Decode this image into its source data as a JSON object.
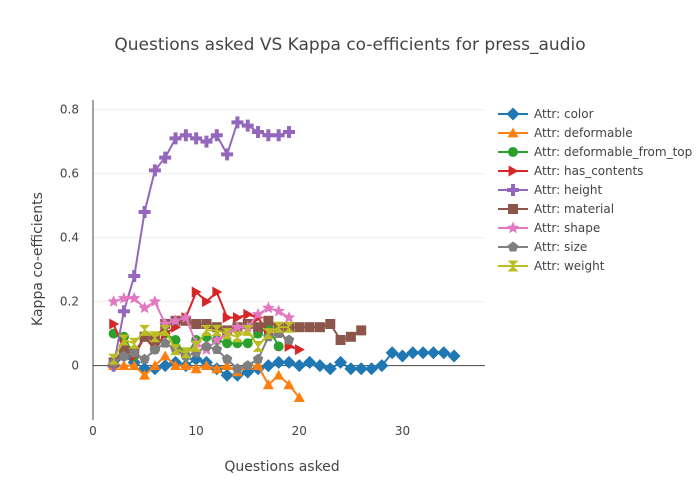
{
  "chart_data": {
    "type": "line",
    "title": "Questions asked VS Kappa co-efficients for press_audio",
    "xlabel": "Questions asked",
    "ylabel": "Kappa co-efficients",
    "xlim": [
      0,
      38
    ],
    "ylim": [
      -0.17,
      0.83
    ],
    "xticks": [
      0,
      10,
      20,
      30
    ],
    "yticks": [
      0,
      0.2,
      0.4,
      0.6,
      0.8
    ],
    "grid": "horizontal",
    "legend_position": "right",
    "series": [
      {
        "name": "Attr: color",
        "color": "#1f77b4",
        "marker": "diamond",
        "x": [
          2,
          3,
          4,
          5,
          6,
          7,
          8,
          9,
          10,
          11,
          12,
          13,
          14,
          15,
          16,
          17,
          18,
          19,
          20,
          21,
          22,
          23,
          24,
          25,
          26,
          27,
          28,
          29,
          30,
          31,
          32,
          33,
          34,
          35
        ],
        "y": [
          0.0,
          0.03,
          0.01,
          -0.01,
          -0.01,
          0.0,
          0.01,
          0.0,
          0.02,
          0.01,
          -0.01,
          -0.03,
          -0.03,
          -0.02,
          -0.01,
          0.0,
          0.01,
          0.01,
          0.0,
          0.01,
          0.0,
          -0.01,
          0.01,
          -0.01,
          -0.01,
          -0.01,
          0.0,
          0.04,
          0.03,
          0.04,
          0.04,
          0.04,
          0.04,
          0.03
        ]
      },
      {
        "name": "Attr: deformable",
        "color": "#ff7f0e",
        "marker": "triangle-up",
        "x": [
          2,
          3,
          4,
          5,
          6,
          7,
          8,
          9,
          10,
          11,
          12,
          13,
          14,
          15,
          16,
          17,
          18,
          19,
          20
        ],
        "y": [
          0.0,
          0.0,
          0.0,
          -0.03,
          0.0,
          0.03,
          0.0,
          0.0,
          -0.01,
          0.0,
          -0.01,
          0.0,
          -0.02,
          0.0,
          0.0,
          -0.06,
          -0.03,
          -0.06,
          -0.1
        ]
      },
      {
        "name": "Attr: deformable_from_top",
        "color": "#2ca02c",
        "marker": "circle",
        "x": [
          2,
          3,
          4,
          5,
          6,
          7,
          8,
          9,
          10,
          11,
          12,
          13,
          14,
          15,
          16,
          17,
          18
        ],
        "y": [
          0.1,
          0.09,
          0.03,
          0.09,
          0.05,
          0.1,
          0.08,
          0.03,
          0.08,
          0.09,
          0.08,
          0.07,
          0.07,
          0.07,
          0.1,
          0.12,
          0.06
        ]
      },
      {
        "name": "Attr: has_contents",
        "color": "#d62728",
        "marker": "triangle-right",
        "x": [
          2,
          3,
          4,
          5,
          6,
          7,
          8,
          9,
          10,
          11,
          12,
          13,
          14,
          15,
          16,
          17,
          18,
          19,
          20
        ],
        "y": [
          0.13,
          0.05,
          0.03,
          0.09,
          0.05,
          0.1,
          0.12,
          0.15,
          0.23,
          0.2,
          0.23,
          0.15,
          0.15,
          0.16,
          0.15,
          0.1,
          0.12,
          0.06,
          0.05
        ]
      },
      {
        "name": "Attr: height",
        "color": "#9467bd",
        "marker": "cross",
        "x": [
          2,
          3,
          4,
          5,
          6,
          7,
          8,
          9,
          10,
          11,
          12,
          13,
          14,
          15,
          16,
          17,
          18,
          19
        ],
        "y": [
          0.0,
          0.17,
          0.28,
          0.48,
          0.61,
          0.65,
          0.71,
          0.72,
          0.71,
          0.7,
          0.72,
          0.66,
          0.76,
          0.75,
          0.73,
          0.72,
          0.72,
          0.73
        ]
      },
      {
        "name": "Attr: material",
        "color": "#8c564b",
        "marker": "square",
        "x": [
          2,
          3,
          4,
          5,
          6,
          7,
          8,
          9,
          10,
          11,
          12,
          13,
          14,
          15,
          16,
          17,
          18,
          19,
          20,
          21,
          22,
          23,
          24,
          25,
          26
        ],
        "y": [
          0.01,
          0.05,
          0.04,
          0.09,
          0.08,
          0.13,
          0.14,
          0.14,
          0.13,
          0.13,
          0.12,
          0.11,
          0.12,
          0.13,
          0.12,
          0.14,
          0.12,
          0.12,
          0.12,
          0.12,
          0.12,
          0.13,
          0.08,
          0.09,
          0.11
        ]
      },
      {
        "name": "Attr: shape",
        "color": "#e377c2",
        "marker": "star",
        "x": [
          2,
          3,
          4,
          5,
          6,
          7,
          8,
          9,
          10,
          11,
          12,
          13,
          14,
          15,
          16,
          17,
          18,
          19
        ],
        "y": [
          0.2,
          0.21,
          0.21,
          0.18,
          0.2,
          0.13,
          0.14,
          0.15,
          0.07,
          0.05,
          0.08,
          0.1,
          0.12,
          0.12,
          0.16,
          0.18,
          0.17,
          0.15
        ]
      },
      {
        "name": "Attr: size",
        "color": "#7f7f7f",
        "marker": "pentagon",
        "x": [
          2,
          3,
          4,
          5,
          6,
          7,
          8,
          9,
          10,
          11,
          12,
          13,
          14,
          15,
          16,
          17,
          18,
          19
        ],
        "y": [
          0.01,
          0.03,
          0.04,
          0.02,
          0.05,
          0.07,
          0.05,
          0.03,
          0.04,
          0.06,
          0.05,
          0.02,
          -0.01,
          0.0,
          0.02,
          0.09,
          0.1,
          0.08
        ]
      },
      {
        "name": "Attr: weight",
        "color": "#bcbd22",
        "marker": "hourglass",
        "x": [
          2,
          3,
          4,
          5,
          6,
          7,
          8,
          9,
          10,
          11,
          12,
          13,
          14,
          15,
          16,
          17,
          18,
          19
        ],
        "y": [
          0.02,
          0.08,
          0.07,
          0.11,
          0.09,
          0.11,
          0.05,
          0.04,
          0.06,
          0.11,
          0.11,
          0.1,
          0.09,
          0.11,
          0.06,
          0.1,
          0.12,
          0.12
        ]
      }
    ]
  }
}
